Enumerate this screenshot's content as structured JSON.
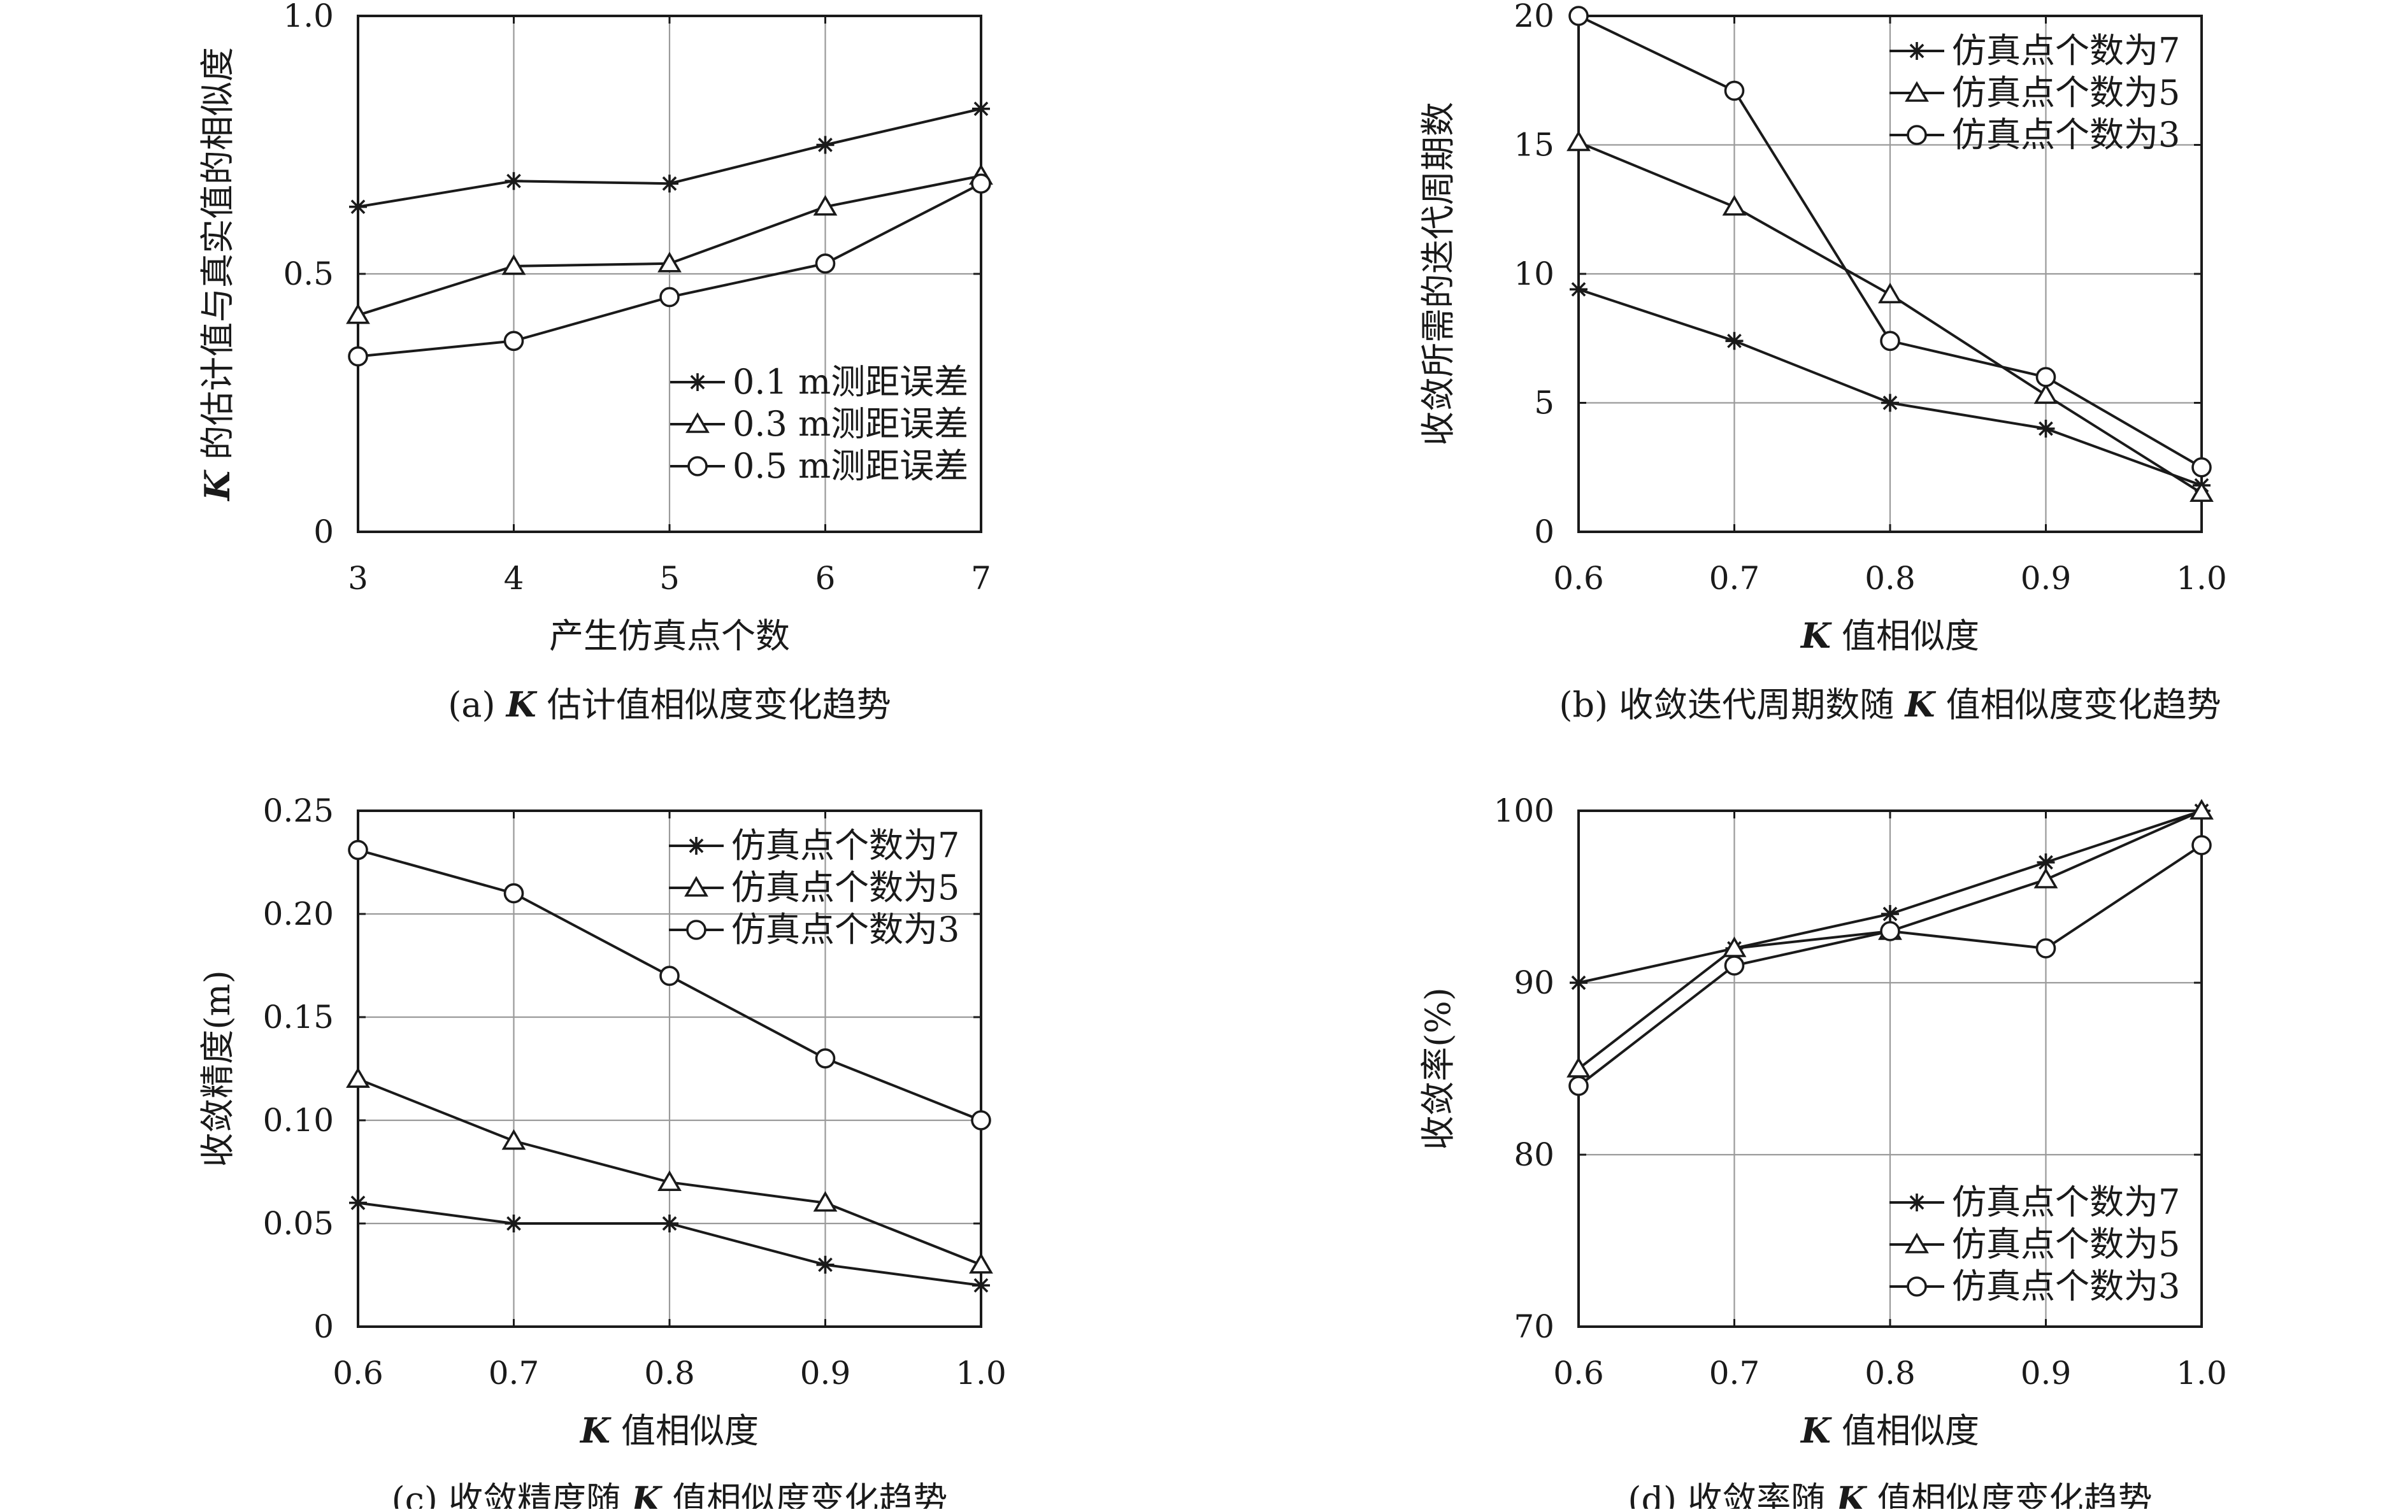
{
  "chart_data": [
    {
      "type": "line",
      "caption_prefix": "(a) ",
      "caption_k": "K",
      "caption_rest": " 估计值相似度变化趋势",
      "xlabel_k": "",
      "xlabel_rest": "产生仿真点个数",
      "ylabel_k": "K",
      "ylabel_rest": " 的估计值与真实值的相似度",
      "x": [
        3,
        4,
        5,
        6,
        7
      ],
      "xticks": [
        "3",
        "4",
        "5",
        "6",
        "7"
      ],
      "xlim": [
        3,
        7
      ],
      "ylim": [
        0,
        1.0
      ],
      "yticks": [
        0,
        0.5,
        1.0
      ],
      "ytick_labels": [
        "0",
        "0.5",
        "1.0"
      ],
      "grid": true,
      "legend_position": "center-right",
      "series": [
        {
          "name": "0.1 m测距误差",
          "marker": "star",
          "values": [
            0.63,
            0.68,
            0.675,
            0.75,
            0.82
          ]
        },
        {
          "name": "0.3 m测距误差",
          "marker": "triangle",
          "values": [
            0.42,
            0.515,
            0.52,
            0.63,
            0.69
          ]
        },
        {
          "name": "0.5 m测距误差",
          "marker": "circle",
          "values": [
            0.34,
            0.37,
            0.455,
            0.52,
            0.675
          ]
        }
      ]
    },
    {
      "type": "line",
      "caption_prefix": "(b) 收敛迭代周期数随 ",
      "caption_k": "K",
      "caption_rest": " 值相似度变化趋势",
      "xlabel_k": "K",
      "xlabel_rest": " 值相似度",
      "ylabel_k": "",
      "ylabel_rest": "收敛所需的迭代周期数",
      "x": [
        0.6,
        0.7,
        0.8,
        0.9,
        1.0
      ],
      "xticks": [
        "0.6",
        "0.7",
        "0.8",
        "0.9",
        "1.0"
      ],
      "xlim": [
        0.6,
        1.0
      ],
      "ylim": [
        0,
        20
      ],
      "yticks": [
        0,
        5,
        10,
        15,
        20
      ],
      "ytick_labels": [
        "0",
        "5",
        "10",
        "15",
        "20"
      ],
      "grid": true,
      "legend_position": "top-right",
      "series": [
        {
          "name": "仿真点个数为7",
          "marker": "star",
          "values": [
            9.4,
            7.4,
            5.0,
            4.0,
            1.8
          ]
        },
        {
          "name": "仿真点个数为5",
          "marker": "triangle",
          "values": [
            15.1,
            12.6,
            9.2,
            5.3,
            1.5
          ]
        },
        {
          "name": "仿真点个数为3",
          "marker": "circle",
          "values": [
            20.0,
            17.1,
            7.4,
            6.0,
            2.5
          ]
        }
      ]
    },
    {
      "type": "line",
      "caption_prefix": "(c) 收敛精度随 ",
      "caption_k": "K",
      "caption_rest": " 值相似度变化趋势",
      "xlabel_k": "K",
      "xlabel_rest": " 值相似度",
      "ylabel_k": "",
      "ylabel_rest": "收敛精度(m)",
      "x": [
        0.6,
        0.7,
        0.8,
        0.9,
        1.0
      ],
      "xticks": [
        "0.6",
        "0.7",
        "0.8",
        "0.9",
        "1.0"
      ],
      "xlim": [
        0.6,
        1.0
      ],
      "ylim": [
        0,
        0.25
      ],
      "yticks": [
        0,
        0.05,
        0.1,
        0.15,
        0.2,
        0.25
      ],
      "ytick_labels": [
        "0",
        "0.05",
        "0.10",
        "0.15",
        "0.20",
        "0.25"
      ],
      "grid": true,
      "legend_position": "top-right",
      "series": [
        {
          "name": "仿真点个数为7",
          "marker": "star",
          "values": [
            0.06,
            0.05,
            0.05,
            0.03,
            0.02
          ]
        },
        {
          "name": "仿真点个数为5",
          "marker": "triangle",
          "values": [
            0.12,
            0.09,
            0.07,
            0.06,
            0.03
          ]
        },
        {
          "name": "仿真点个数为3",
          "marker": "circle",
          "values": [
            0.231,
            0.21,
            0.17,
            0.13,
            0.1
          ]
        }
      ]
    },
    {
      "type": "line",
      "caption_prefix": "(d) 收敛率随 ",
      "caption_k": "K",
      "caption_rest": " 值相似度变化趋势",
      "xlabel_k": "K",
      "xlabel_rest": " 值相似度",
      "ylabel_k": "",
      "ylabel_rest": "收敛率(%)",
      "x": [
        0.6,
        0.7,
        0.8,
        0.9,
        1.0
      ],
      "xticks": [
        "0.6",
        "0.7",
        "0.8",
        "0.9",
        "1.0"
      ],
      "xlim": [
        0.6,
        1.0
      ],
      "ylim": [
        70,
        100
      ],
      "yticks": [
        70,
        80,
        90,
        100
      ],
      "ytick_labels": [
        "70",
        "80",
        "90",
        "100"
      ],
      "grid": true,
      "legend_position": "bottom-right",
      "series": [
        {
          "name": "仿真点个数为7",
          "marker": "star",
          "values": [
            90,
            92,
            94,
            97,
            100
          ]
        },
        {
          "name": "仿真点个数为5",
          "marker": "triangle",
          "values": [
            85,
            92,
            93,
            96,
            100
          ]
        },
        {
          "name": "仿真点个数为3",
          "marker": "circle",
          "values": [
            84,
            91,
            93,
            92,
            98
          ]
        }
      ]
    }
  ]
}
